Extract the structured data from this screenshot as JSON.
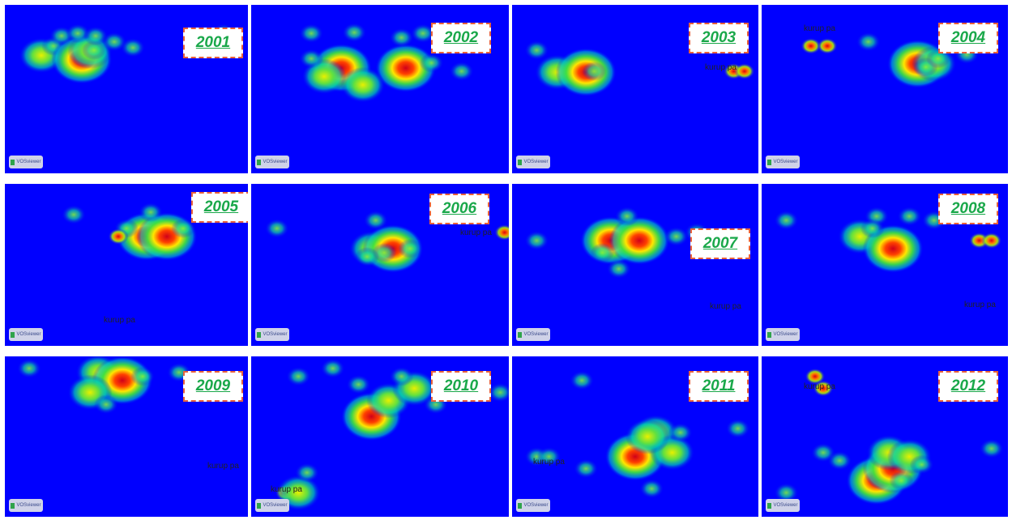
{
  "panels": [
    {
      "year": "2001",
      "logo": "VOSviewer",
      "label": "",
      "blobs": [
        [
          45,
          15,
          "m"
        ],
        [
          60,
          20,
          "s"
        ],
        [
          95,
          20,
          "h"
        ],
        [
          105,
          10,
          "m"
        ],
        [
          110,
          25,
          "s"
        ],
        [
          135,
          15,
          "s"
        ],
        [
          158,
          22,
          "s"
        ],
        [
          70,
          8,
          "s"
        ],
        [
          90,
          5,
          "s"
        ],
        [
          112,
          8,
          "s"
        ],
        [
          270,
          5,
          "s"
        ]
      ]
    },
    {
      "year": "2002",
      "logo": "VOSviewer",
      "label": "",
      "blobs": [
        [
          105,
          30,
          "h"
        ],
        [
          180,
          30,
          "h"
        ],
        [
          85,
          40,
          "m"
        ],
        [
          130,
          50,
          "m"
        ],
        [
          210,
          40,
          "s"
        ],
        [
          175,
          10,
          "s"
        ],
        [
          200,
          5,
          "s"
        ],
        [
          120,
          4,
          "s"
        ],
        [
          70,
          5,
          "s"
        ],
        [
          245,
          5,
          "s"
        ],
        [
          70,
          35,
          "s"
        ],
        [
          245,
          50,
          "s"
        ]
      ]
    },
    {
      "year": "2003",
      "logo": "VOSviewer",
      "label": "kurup pa",
      "blobs": [
        [
          55,
          35,
          "m"
        ],
        [
          90,
          35,
          "h"
        ],
        [
          30,
          25,
          "s"
        ],
        [
          100,
          50,
          "s"
        ],
        [
          270,
          50,
          "r"
        ],
        [
          283,
          50,
          "r"
        ]
      ]
    },
    {
      "year": "2004",
      "logo": "VOSviewer",
      "label": "kurup pa",
      "blobs": [
        [
          60,
          20,
          "r"
        ],
        [
          80,
          20,
          "r"
        ],
        [
          190,
          25,
          "h"
        ],
        [
          210,
          25,
          "m"
        ],
        [
          230,
          15,
          "s"
        ],
        [
          250,
          30,
          "s"
        ],
        [
          130,
          15,
          "s"
        ],
        [
          200,
          45,
          "s"
        ],
        [
          215,
          35,
          "s"
        ]
      ]
    },
    {
      "year": "2005",
      "logo": "VOSviewer",
      "label": "kurup pa",
      "blobs": [
        [
          175,
          20,
          "h"
        ],
        [
          200,
          20,
          "h"
        ],
        [
          180,
          5,
          "s"
        ],
        [
          220,
          25,
          "s"
        ],
        [
          85,
          8,
          "s"
        ],
        [
          150,
          25,
          "s"
        ],
        [
          140,
          35,
          "r"
        ]
      ]
    },
    {
      "year": "2006",
      "logo": "VOSviewer",
      "label": "kurup pa",
      "blobs": [
        [
          140,
          35,
          "m"
        ],
        [
          165,
          35,
          "h"
        ],
        [
          145,
          15,
          "s"
        ],
        [
          155,
          55,
          "s"
        ],
        [
          135,
          60,
          "s"
        ],
        [
          185,
          50,
          "s"
        ],
        [
          30,
          25,
          "s"
        ],
        [
          295,
          30,
          "r"
        ]
      ]
    },
    {
      "year": "2007",
      "logo": "VOSviewer",
      "label": "kurup pa",
      "blobs": [
        [
          120,
          25,
          "h"
        ],
        [
          155,
          25,
          "h"
        ],
        [
          140,
          10,
          "s"
        ],
        [
          110,
          55,
          "s"
        ],
        [
          130,
          75,
          "s"
        ],
        [
          200,
          35,
          "s"
        ],
        [
          225,
          30,
          "s"
        ],
        [
          30,
          40,
          "s"
        ],
        [
          262,
          38,
          "r"
        ],
        [
          275,
          50,
          "r"
        ]
      ]
    },
    {
      "year": "2008",
      "logo": "VOSviewer",
      "label": "kurup pa",
      "blobs": [
        [
          120,
          20,
          "m"
        ],
        [
          160,
          35,
          "h"
        ],
        [
          140,
          10,
          "s"
        ],
        [
          180,
          10,
          "s"
        ],
        [
          210,
          15,
          "s"
        ],
        [
          135,
          25,
          "s"
        ],
        [
          30,
          15,
          "s"
        ],
        [
          265,
          40,
          "r"
        ],
        [
          280,
          40,
          "r"
        ]
      ]
    },
    {
      "year": "2009",
      "logo": "VOSviewer",
      "label": "kurup pa",
      "blobs": [
        [
          115,
          20,
          "m"
        ],
        [
          145,
          30,
          "h"
        ],
        [
          105,
          45,
          "m"
        ],
        [
          125,
          60,
          "s"
        ],
        [
          170,
          25,
          "s"
        ],
        [
          215,
          20,
          "s"
        ],
        [
          30,
          15,
          "s"
        ],
        [
          265,
          30,
          "r"
        ],
        [
          280,
          30,
          "r"
        ]
      ]
    },
    {
      "year": "2010",
      "logo": "VOSviewer",
      "label": "kurup pa",
      "blobs": [
        [
          140,
          75,
          "h"
        ],
        [
          160,
          55,
          "m"
        ],
        [
          190,
          40,
          "m"
        ],
        [
          125,
          35,
          "s"
        ],
        [
          215,
          60,
          "s"
        ],
        [
          175,
          25,
          "s"
        ],
        [
          55,
          25,
          "s"
        ],
        [
          95,
          15,
          "s"
        ],
        [
          290,
          45,
          "s"
        ],
        [
          40,
          170,
          "r"
        ],
        [
          55,
          170,
          "m"
        ],
        [
          65,
          145,
          "s"
        ]
      ]
    },
    {
      "year": "2011",
      "logo": "VOSviewer",
      "label": "kurup pa",
      "blobs": [
        [
          150,
          125,
          "h"
        ],
        [
          175,
          95,
          "m"
        ],
        [
          195,
          120,
          "m"
        ],
        [
          165,
          100,
          "m"
        ],
        [
          205,
          95,
          "s"
        ],
        [
          85,
          30,
          "s"
        ],
        [
          30,
          125,
          "s"
        ],
        [
          45,
          125,
          "s"
        ],
        [
          90,
          140,
          "s"
        ],
        [
          275,
          90,
          "s"
        ],
        [
          170,
          165,
          "s"
        ]
      ]
    },
    {
      "year": "2012",
      "logo": "VOSviewer",
      "label": "kurup pa",
      "blobs": [
        [
          140,
          155,
          "h"
        ],
        [
          160,
          140,
          "h"
        ],
        [
          155,
          120,
          "m"
        ],
        [
          180,
          125,
          "m"
        ],
        [
          170,
          155,
          "s"
        ],
        [
          195,
          135,
          "s"
        ],
        [
          75,
          120,
          "s"
        ],
        [
          95,
          130,
          "s"
        ],
        [
          65,
          25,
          "r"
        ],
        [
          75,
          40,
          "r"
        ],
        [
          280,
          115,
          "s"
        ],
        [
          30,
          170,
          "s"
        ]
      ]
    }
  ]
}
